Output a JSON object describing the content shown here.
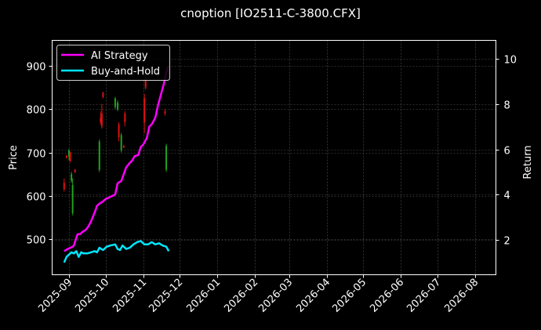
{
  "title": "cnoption [IO2511-C-3800.CFX]",
  "chart_data": {
    "type": "line",
    "title": "cnoption [IO2511-C-3800.CFX]",
    "xlabel": "",
    "ylabel_left": "Price",
    "ylabel_right": "Return",
    "x_ticks": [
      "2025-09",
      "2025-10",
      "2025-11",
      "2025-12",
      "2026-01",
      "2026-02",
      "2026-03",
      "2026-04",
      "2026-05",
      "2026-06",
      "2026-07",
      "2026-08"
    ],
    "y_left_ticks": [
      500,
      600,
      700,
      800,
      900
    ],
    "y_right_ticks": [
      2,
      4,
      6,
      8,
      10
    ],
    "y_left_range": [
      418,
      958
    ],
    "y_right_range": [
      0.5,
      10.8
    ],
    "grid": true,
    "legend_position": "upper left",
    "legend": [
      "AI Strategy",
      "Buy-and-Hold"
    ],
    "colors": {
      "ai_strategy": "#ff00ff",
      "buy_and_hold": "#00e5ff",
      "candle_up": "#1fa31f",
      "candle_down": "#e01010",
      "background": "#000000",
      "frame": "#ffffff",
      "grid": "#555555"
    },
    "series": [
      {
        "name": "AI Strategy",
        "axis": "right",
        "x": [
          "2025-08-28",
          "2025-08-31",
          "2025-09-02",
          "2025-09-04",
          "2025-09-05",
          "2025-09-08",
          "2025-09-10",
          "2025-09-12",
          "2025-09-15",
          "2025-09-17",
          "2025-09-19",
          "2025-09-22",
          "2025-09-24",
          "2025-09-26",
          "2025-09-29",
          "2025-10-01",
          "2025-10-09",
          "2025-10-11",
          "2025-10-14",
          "2025-10-16",
          "2025-10-18",
          "2025-10-21",
          "2025-10-23",
          "2025-10-25",
          "2025-10-28",
          "2025-10-30",
          "2025-11-01",
          "2025-11-04",
          "2025-11-06",
          "2025-11-08",
          "2025-11-11",
          "2025-11-13",
          "2025-11-15",
          "2025-11-18",
          "2025-11-20",
          "2025-11-22"
        ],
        "values": [
          1.5,
          1.6,
          1.65,
          1.7,
          1.75,
          2.25,
          2.25,
          2.35,
          2.45,
          2.6,
          2.8,
          3.2,
          3.5,
          3.6,
          3.7,
          3.8,
          4.0,
          4.5,
          4.6,
          4.9,
          5.2,
          5.4,
          5.5,
          5.7,
          5.75,
          6.1,
          6.2,
          6.5,
          7.0,
          7.1,
          7.4,
          7.9,
          8.3,
          8.9,
          9.4,
          9.7
        ]
      },
      {
        "name": "Buy-and-Hold",
        "axis": "right",
        "x": [
          "2025-08-28",
          "2025-08-30",
          "2025-09-01",
          "2025-09-03",
          "2025-09-05",
          "2025-09-07",
          "2025-09-09",
          "2025-09-11",
          "2025-09-13",
          "2025-09-16",
          "2025-09-19",
          "2025-09-22",
          "2025-09-24",
          "2025-09-26",
          "2025-09-29",
          "2025-10-02",
          "2025-10-05",
          "2025-10-09",
          "2025-10-11",
          "2025-10-13",
          "2025-10-15",
          "2025-10-18",
          "2025-10-21",
          "2025-10-24",
          "2025-10-27",
          "2025-10-30",
          "2025-11-02",
          "2025-11-05",
          "2025-11-08",
          "2025-11-11",
          "2025-11-14",
          "2025-11-17",
          "2025-11-20",
          "2025-11-22"
        ],
        "values": [
          1.0,
          1.25,
          1.35,
          1.45,
          1.4,
          1.5,
          1.25,
          1.45,
          1.4,
          1.4,
          1.45,
          1.5,
          1.45,
          1.65,
          1.55,
          1.7,
          1.75,
          1.8,
          1.6,
          1.55,
          1.75,
          1.6,
          1.65,
          1.8,
          1.9,
          1.95,
          1.8,
          1.8,
          1.9,
          1.8,
          1.85,
          1.75,
          1.7,
          1.5
        ]
      }
    ],
    "candles": [
      {
        "date": "2025-08-28",
        "open": 630,
        "close": 615,
        "high": 640,
        "low": 610,
        "dir": "down"
      },
      {
        "date": "2025-08-30",
        "open": 688,
        "close": 692,
        "high": 695,
        "low": 686,
        "dir": "down"
      },
      {
        "date": "2025-09-01",
        "open": 690,
        "close": 705,
        "high": 708,
        "low": 682,
        "dir": "up"
      },
      {
        "date": "2025-09-02",
        "open": 700,
        "close": 680,
        "high": 702,
        "low": 678,
        "dir": "down"
      },
      {
        "date": "2025-09-03",
        "open": 650,
        "close": 635,
        "high": 655,
        "low": 630,
        "dir": "up"
      },
      {
        "date": "2025-09-04",
        "open": 625,
        "close": 560,
        "high": 640,
        "low": 555,
        "dir": "up"
      },
      {
        "date": "2025-09-06",
        "open": 660,
        "close": 655,
        "high": 662,
        "low": 652,
        "dir": "down"
      },
      {
        "date": "2025-09-26",
        "open": 725,
        "close": 660,
        "high": 730,
        "low": 655,
        "dir": "up"
      },
      {
        "date": "2025-09-27",
        "open": 780,
        "close": 770,
        "high": 795,
        "low": 765,
        "dir": "down"
      },
      {
        "date": "2025-09-28",
        "open": 790,
        "close": 760,
        "high": 812,
        "low": 755,
        "dir": "down"
      },
      {
        "date": "2025-09-29",
        "open": 838,
        "close": 828,
        "high": 840,
        "low": 825,
        "dir": "down"
      },
      {
        "date": "2025-10-09",
        "open": 825,
        "close": 805,
        "high": 828,
        "low": 800,
        "dir": "up"
      },
      {
        "date": "2025-10-11",
        "open": 815,
        "close": 800,
        "high": 820,
        "low": 795,
        "dir": "up"
      },
      {
        "date": "2025-10-12",
        "open": 765,
        "close": 735,
        "high": 770,
        "low": 725,
        "dir": "down"
      },
      {
        "date": "2025-10-14",
        "open": 740,
        "close": 705,
        "high": 745,
        "low": 700,
        "dir": "up"
      },
      {
        "date": "2025-10-16",
        "open": 712,
        "close": 715,
        "high": 718,
        "low": 710,
        "dir": "down"
      },
      {
        "date": "2025-10-17",
        "open": 790,
        "close": 770,
        "high": 795,
        "low": 760,
        "dir": "down"
      },
      {
        "date": "2025-11-02",
        "open": 825,
        "close": 770,
        "high": 835,
        "low": 745,
        "dir": "down"
      },
      {
        "date": "2025-11-03",
        "open": 870,
        "close": 850,
        "high": 880,
        "low": 845,
        "dir": "down"
      },
      {
        "date": "2025-11-19",
        "open": 795,
        "close": 790,
        "high": 800,
        "low": 785,
        "dir": "down"
      },
      {
        "date": "2025-11-20",
        "open": 715,
        "close": 660,
        "high": 720,
        "low": 655,
        "dir": "up"
      }
    ]
  }
}
